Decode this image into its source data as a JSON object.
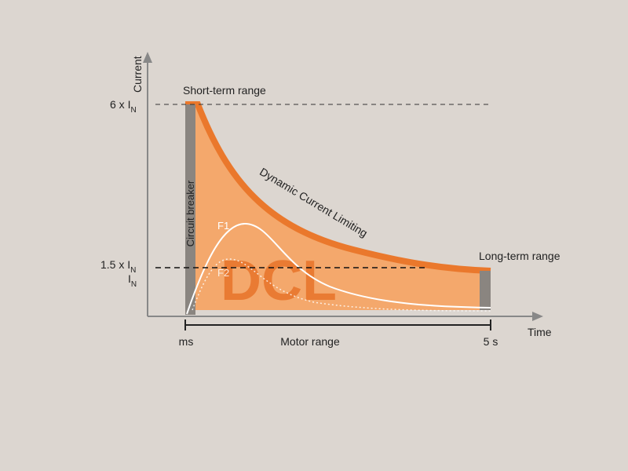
{
  "axes": {
    "y_label": "Current",
    "x_label": "Time"
  },
  "levels": [
    {
      "main": "6 x I",
      "sub": "N"
    },
    {
      "main": "1.5 x I",
      "sub": "N"
    },
    {
      "main": "I",
      "sub": "N"
    }
  ],
  "ranges": {
    "short_term": "Short-term range",
    "long_term": "Long-term range",
    "motor": "Motor range",
    "start": "ms",
    "end": "5 s"
  },
  "curve_label": "Dynamic Current Limiting",
  "breaker_label": "Circuit breaker",
  "curves": [
    "F1",
    "F2"
  ],
  "center_label": "DCL"
}
